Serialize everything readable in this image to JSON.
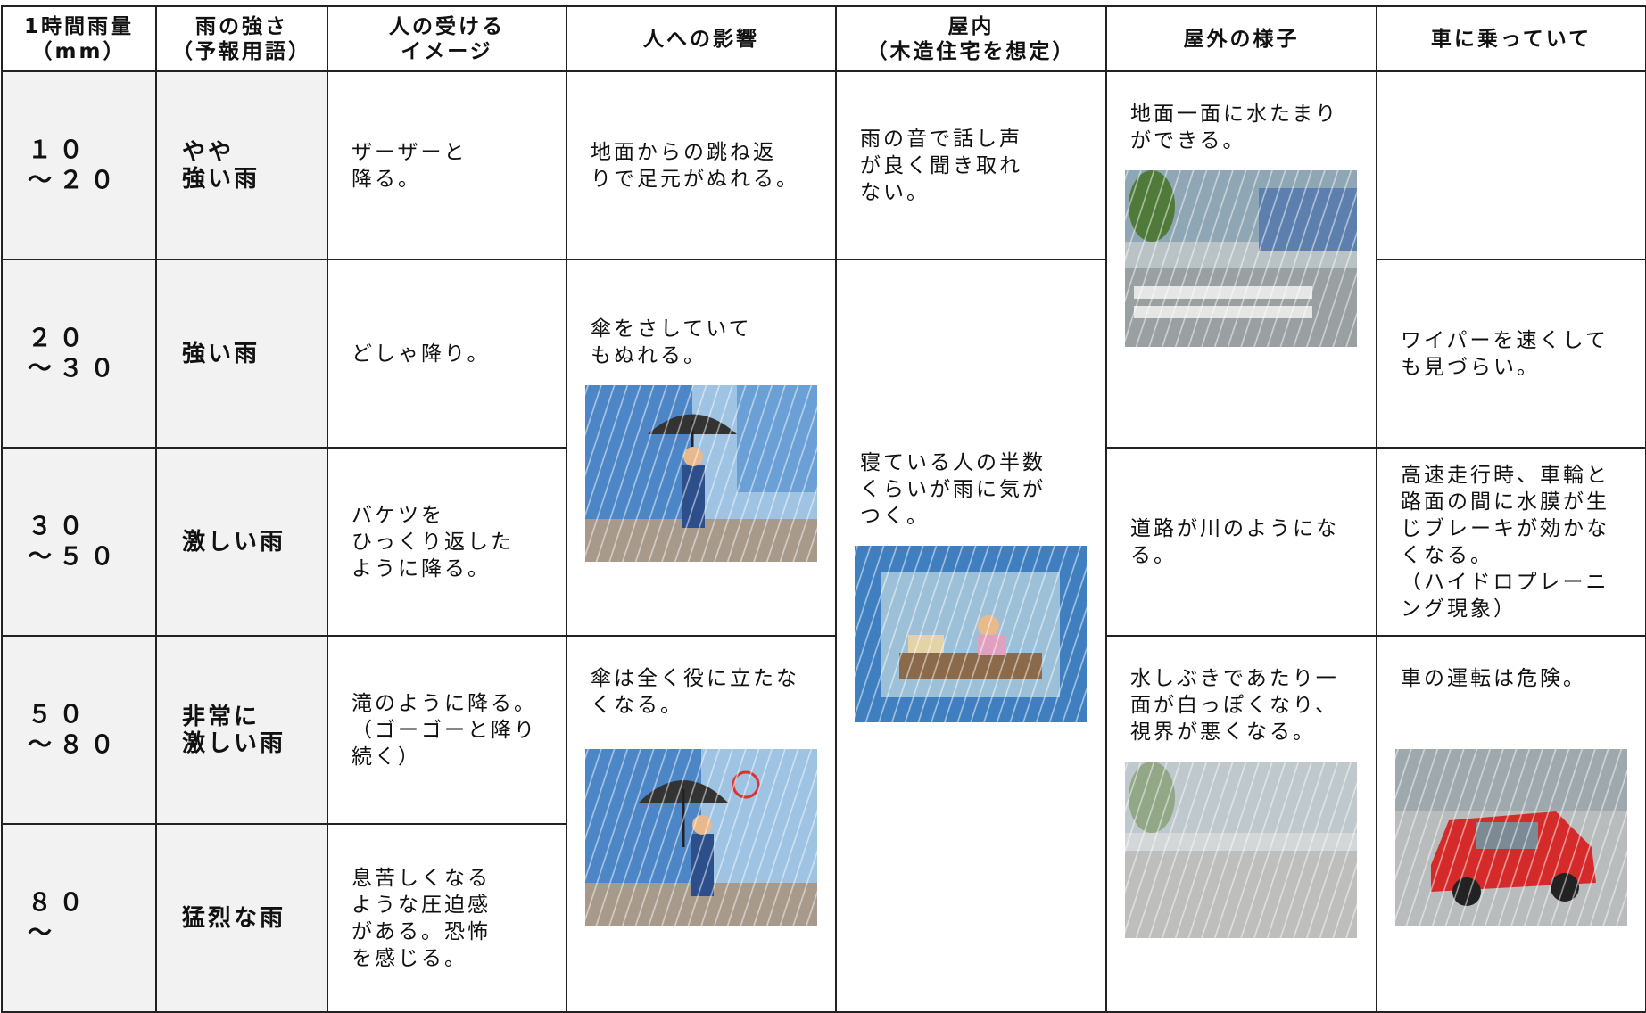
{
  "table": {
    "header": [
      "1時間雨量\n（mm）",
      "雨の強さ\n（予報用語）",
      "人の受ける\nイメージ",
      "人への影響",
      "屋内\n（木造住宅を想定）",
      "屋外の様子",
      "車に乗っていて"
    ],
    "rows": [
      {
        "amount": "１０\n～２０",
        "intensity": "やや\n強い雨",
        "image": "ザーザーと\n降る。",
        "person": "地面からの跳ね返\nりで足元がぬれる。",
        "indoor": "雨の音で話し声\nが良く聞き取れ\nない。",
        "outdoor": "地面一面に水たまり\nができる。"
      },
      {
        "amount": "２０\n～３０",
        "intensity": "強い雨",
        "image": "どしゃ降り。",
        "person": "傘をさしていて\nもぬれる。",
        "indoor": "寝ている人の半数\nくらいが雨に気が\nつく。",
        "car": "ワイパーを速くして\nも見づらい。"
      },
      {
        "amount": "３０\n～５０",
        "intensity": "激しい雨",
        "image": "バケツを\nひっくり返した\nように降る。",
        "outdoor": "道路が川のようにな\nる。",
        "car": "高速走行時、車輪と\n路面の間に水膜が生\nじブレーキが効かな\nくなる。\n（ハイドロプレーニ\nング現象）"
      },
      {
        "amount": "５０\n～８０",
        "intensity": "非常に\n激しい雨",
        "image": "滝のように降る。\n（ゴーゴーと降り\n続く）",
        "person": "傘は全く役に立たな\nくなる。",
        "outdoor": "水しぶきであたり一\n面が白っぽくなり、\n視界が悪くなる。",
        "car": "車の運転は危険。"
      },
      {
        "amount": "８０\n～",
        "intensity": "猛烈な雨",
        "image": "息苦しくなる\nような圧迫感\nがある。恐怖\nを感じる。"
      }
    ]
  }
}
